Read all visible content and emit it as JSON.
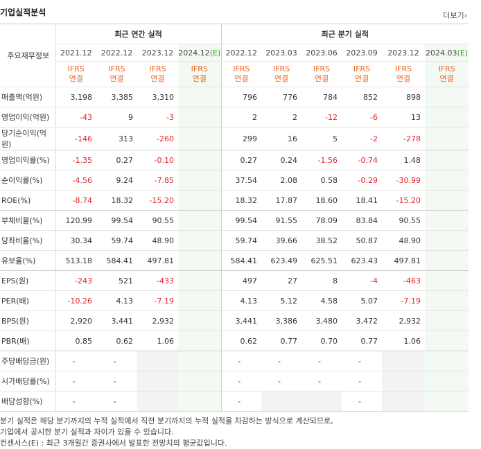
{
  "section_title": "기업실적분석",
  "more_label": "더보기",
  "more_chevron": "›",
  "header": {
    "label": "주요재무정보",
    "annual_group": "최근 연간 실적",
    "quarter_group": "최근 분기 실적",
    "annual_dates": [
      "2021.12",
      "2022.12",
      "2023.12",
      "2024.12"
    ],
    "annual_est_mark": "(E)",
    "quarter_dates": [
      "2022.12",
      "2023.03",
      "2023.06",
      "2023.09",
      "2023.12",
      "2024.03"
    ],
    "quarter_est_mark": "(E)",
    "ifrs_line1": "IFRS",
    "ifrs_line2": "연결"
  },
  "rows": [
    {
      "label": "매출액(억원)",
      "annual": [
        "3,198",
        "3,385",
        "3,310",
        ""
      ],
      "quarter": [
        "796",
        "776",
        "784",
        "852",
        "898",
        ""
      ]
    },
    {
      "label": "영업이익(억원)",
      "annual": [
        "-43",
        "9",
        "-3",
        ""
      ],
      "quarter": [
        "2",
        "2",
        "-12",
        "-6",
        "13",
        ""
      ]
    },
    {
      "label": "당기순이익(억원)",
      "annual": [
        "-146",
        "313",
        "-260",
        ""
      ],
      "quarter": [
        "299",
        "16",
        "5",
        "-2",
        "-278",
        ""
      ]
    },
    {
      "label": "영업이익률(%)",
      "annual": [
        "-1.35",
        "0.27",
        "-0.10",
        ""
      ],
      "quarter": [
        "0.27",
        "0.24",
        "-1.56",
        "-0.74",
        "1.48",
        ""
      ]
    },
    {
      "label": "순이익률(%)",
      "annual": [
        "-4.56",
        "9.24",
        "-7.85",
        ""
      ],
      "quarter": [
        "37.54",
        "2.08",
        "0.58",
        "-0.29",
        "-30.99",
        ""
      ]
    },
    {
      "label": "ROE(%)",
      "annual": [
        "-8.74",
        "18.32",
        "-15.20",
        ""
      ],
      "quarter": [
        "18.32",
        "17.87",
        "18.60",
        "18.41",
        "-15.20",
        ""
      ]
    },
    {
      "label": "부채비율(%)",
      "annual": [
        "120.99",
        "99.54",
        "90.55",
        ""
      ],
      "quarter": [
        "99.54",
        "91.55",
        "78.09",
        "83.84",
        "90.55",
        ""
      ]
    },
    {
      "label": "당좌비율(%)",
      "annual": [
        "30.34",
        "59.74",
        "48.90",
        ""
      ],
      "quarter": [
        "59.74",
        "39.66",
        "38.52",
        "50.87",
        "48.90",
        ""
      ]
    },
    {
      "label": "유보율(%)",
      "annual": [
        "513.18",
        "584.41",
        "497.81",
        ""
      ],
      "quarter": [
        "584.41",
        "623.49",
        "625.51",
        "623.43",
        "497.81",
        ""
      ]
    },
    {
      "label": "EPS(원)",
      "annual": [
        "-243",
        "521",
        "-433",
        ""
      ],
      "quarter": [
        "497",
        "27",
        "8",
        "-4",
        "-463",
        ""
      ]
    },
    {
      "label": "PER(배)",
      "annual": [
        "-10.26",
        "4.13",
        "-7.19",
        ""
      ],
      "quarter": [
        "4.13",
        "5.12",
        "4.58",
        "5.07",
        "-7.19",
        ""
      ]
    },
    {
      "label": "BPS(원)",
      "annual": [
        "2,920",
        "3,441",
        "2,932",
        ""
      ],
      "quarter": [
        "3,441",
        "3,386",
        "3,480",
        "3,472",
        "2,932",
        ""
      ]
    },
    {
      "label": "PBR(배)",
      "annual": [
        "0.85",
        "0.62",
        "1.06",
        ""
      ],
      "quarter": [
        "0.62",
        "0.77",
        "0.70",
        "0.77",
        "1.06",
        ""
      ]
    },
    {
      "label": "주당배당금(원)",
      "annual": [
        "-",
        "-",
        "",
        ""
      ],
      "quarter": [
        "-",
        "-",
        "-",
        "-",
        "",
        ""
      ]
    },
    {
      "label": "시가배당률(%)",
      "annual": [
        "-",
        "-",
        "",
        ""
      ],
      "quarter": [
        "-",
        "-",
        "-",
        "-",
        "",
        ""
      ]
    },
    {
      "label": "배당성향(%)",
      "annual": [
        "-",
        "-",
        "",
        ""
      ],
      "quarter": [
        "-",
        "",
        "",
        "-",
        "",
        ""
      ]
    }
  ],
  "notes": [
    "분기 실적은 해당 분기까지의 누적 실적에서 직전 분기까지의 누적 실적을 차감하는 방식으로 계산되므로,",
    "기업에서 공시한 분기 실적과 차이가 있을 수 있습니다.",
    "컨센서스(E) : 최근 3개월간 증권사에서 발표한 전망치의 평균값입니다."
  ],
  "colors": {
    "negative": "#e0242c",
    "ifrs": "#f0621c",
    "estimate": "#2c9d2c",
    "estimate_bg": "#f3faf3"
  }
}
